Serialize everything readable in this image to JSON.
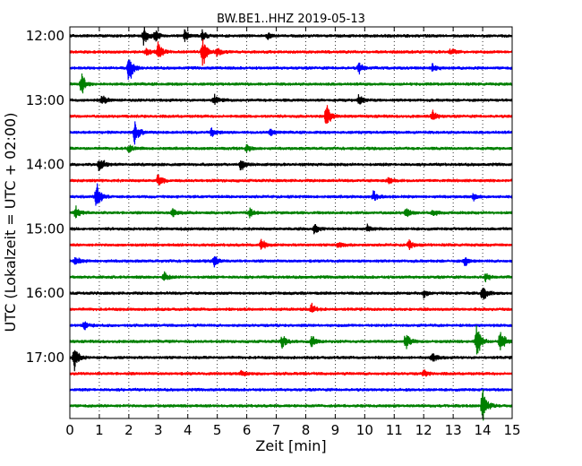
{
  "chart_data": {
    "type": "line",
    "chart_kind": "helicorder",
    "title": "BW.BE1..HHZ 2019-05-13",
    "xlabel": "Zeit  [min]",
    "ylabel": "UTC (Lokalzeit = UTC + 02:00)",
    "xlim": [
      0,
      15
    ],
    "x_ticks": [
      0,
      1,
      2,
      3,
      4,
      5,
      6,
      7,
      8,
      9,
      10,
      11,
      12,
      13,
      14,
      15
    ],
    "x_grid": "dotted",
    "y_tick_labels": [
      "12:00",
      "13:00",
      "14:00",
      "15:00",
      "16:00",
      "17:00"
    ],
    "trace_interval_minutes": 15,
    "color_cycle": [
      "#000000",
      "#ff0000",
      "#0000ff",
      "#008000"
    ],
    "traces": [
      {
        "start": "12:00",
        "events": [
          [
            2.5,
            0.55
          ],
          [
            2.9,
            0.3
          ],
          [
            3.9,
            0.3
          ],
          [
            4.5,
            0.3
          ],
          [
            6.7,
            0.2
          ]
        ]
      },
      {
        "start": "12:15",
        "events": [
          [
            3.0,
            0.5
          ],
          [
            4.5,
            1.0
          ],
          [
            2.6,
            0.25
          ],
          [
            5.0,
            0.25
          ],
          [
            12.9,
            0.2
          ]
        ]
      },
      {
        "start": "12:30",
        "events": [
          [
            2.0,
            0.9
          ],
          [
            9.8,
            0.3
          ],
          [
            12.3,
            0.25
          ]
        ]
      },
      {
        "start": "12:45",
        "events": [
          [
            0.4,
            0.6
          ]
        ]
      },
      {
        "start": "13:00",
        "events": [
          [
            1.1,
            0.3
          ],
          [
            4.9,
            0.25
          ],
          [
            9.8,
            0.3
          ]
        ]
      },
      {
        "start": "13:15",
        "events": [
          [
            8.7,
            0.7
          ],
          [
            12.3,
            0.3
          ]
        ]
      },
      {
        "start": "13:30",
        "events": [
          [
            2.2,
            0.7
          ],
          [
            4.8,
            0.25
          ],
          [
            6.8,
            0.2
          ]
        ]
      },
      {
        "start": "13:45",
        "events": [
          [
            2.0,
            0.2
          ],
          [
            6.0,
            0.2
          ]
        ]
      },
      {
        "start": "14:00",
        "events": [
          [
            1.0,
            0.5
          ],
          [
            5.8,
            0.35
          ]
        ]
      },
      {
        "start": "14:15",
        "events": [
          [
            3.0,
            0.35
          ],
          [
            10.8,
            0.2
          ]
        ]
      },
      {
        "start": "14:30",
        "events": [
          [
            0.9,
            0.8
          ],
          [
            10.3,
            0.3
          ],
          [
            13.7,
            0.2
          ]
        ]
      },
      {
        "start": "14:45",
        "events": [
          [
            0.2,
            0.3
          ],
          [
            3.5,
            0.3
          ],
          [
            6.1,
            0.25
          ],
          [
            11.4,
            0.3
          ],
          [
            12.3,
            0.2
          ]
        ]
      },
      {
        "start": "15:00",
        "events": [
          [
            8.3,
            0.3
          ],
          [
            10.1,
            0.2
          ]
        ]
      },
      {
        "start": "15:15",
        "events": [
          [
            6.5,
            0.35
          ],
          [
            9.1,
            0.2
          ],
          [
            11.5,
            0.25
          ]
        ]
      },
      {
        "start": "15:30",
        "events": [
          [
            0.2,
            0.25
          ],
          [
            4.9,
            0.3
          ],
          [
            13.4,
            0.3
          ]
        ]
      },
      {
        "start": "15:45",
        "events": [
          [
            3.2,
            0.25
          ],
          [
            14.1,
            0.2
          ]
        ]
      },
      {
        "start": "16:00",
        "events": [
          [
            14.0,
            0.5
          ],
          [
            12.0,
            0.2
          ]
        ]
      },
      {
        "start": "16:15",
        "events": [
          [
            8.2,
            0.3
          ]
        ]
      },
      {
        "start": "16:30",
        "events": [
          [
            0.5,
            0.25
          ]
        ]
      },
      {
        "start": "16:45",
        "events": [
          [
            7.2,
            0.4
          ],
          [
            8.2,
            0.35
          ],
          [
            11.4,
            0.6
          ],
          [
            13.8,
            1.0
          ],
          [
            14.6,
            0.7
          ]
        ]
      },
      {
        "start": "17:00",
        "events": [
          [
            0.15,
            0.7
          ],
          [
            12.3,
            0.3
          ]
        ]
      },
      {
        "start": "17:15",
        "events": [
          [
            5.8,
            0.2
          ],
          [
            12.0,
            0.2
          ]
        ]
      },
      {
        "start": "17:30",
        "events": []
      },
      {
        "start": "17:45",
        "events": [
          [
            14.0,
            1.0
          ]
        ]
      }
    ]
  }
}
